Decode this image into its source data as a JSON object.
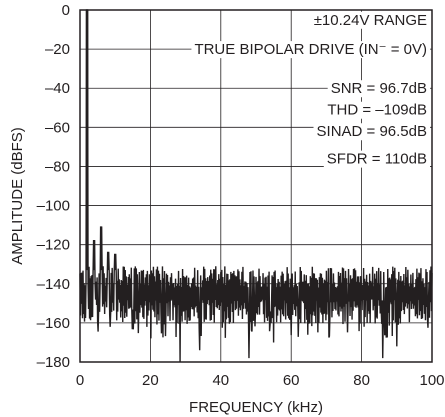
{
  "chart_data": {
    "type": "line",
    "title": "",
    "xlabel": "FREQUENCY (kHz)",
    "ylabel": "AMPLITUDE (dBFS)",
    "xlim": [
      0,
      100
    ],
    "ylim": [
      -180,
      0
    ],
    "xticks": [
      {
        "value": 0,
        "label": "0"
      },
      {
        "value": 20,
        "label": "20"
      },
      {
        "value": 40,
        "label": "40"
      },
      {
        "value": 60,
        "label": "60"
      },
      {
        "value": 80,
        "label": "80"
      },
      {
        "value": 100,
        "label": "100"
      }
    ],
    "yticks": [
      {
        "value": 0,
        "label": "0"
      },
      {
        "value": -20,
        "label": "–20"
      },
      {
        "value": -40,
        "label": "–40"
      },
      {
        "value": -60,
        "label": "–60"
      },
      {
        "value": -80,
        "label": "–80"
      },
      {
        "value": -100,
        "label": "–100"
      },
      {
        "value": -120,
        "label": "–120"
      },
      {
        "value": -140,
        "label": "–140"
      },
      {
        "value": -160,
        "label": "–160"
      },
      {
        "value": -180,
        "label": "–180"
      }
    ],
    "grid": true,
    "annotations": [
      {
        "text": "±10.24V RANGE",
        "y": -5
      },
      {
        "text": "TRUE BIPOLAR DRIVE (IN⁻ = 0V)",
        "y": -20
      },
      {
        "text": "SNR = 96.7dB",
        "y": -40
      },
      {
        "text": "THD = –109dB",
        "y": -51
      },
      {
        "text": "SINAD = 96.5dB",
        "y": -62
      },
      {
        "text": "SFDR = 110dB",
        "y": -76
      }
    ],
    "series": [
      {
        "fundamental": {
          "x": 2,
          "y": 0
        },
        "harmonics": [
          {
            "x": 4,
            "y": -118
          },
          {
            "x": 6,
            "y": -111
          },
          {
            "x": 8,
            "y": -124
          },
          {
            "x": 10,
            "y": -125
          }
        ],
        "noise_floor_upper": -133,
        "noise_floor_lower": -160,
        "noise_center": -145,
        "notable_dips": [
          {
            "x": 28.5,
            "y": -180
          },
          {
            "x": 34,
            "y": -174
          },
          {
            "x": 48,
            "y": -178
          },
          {
            "x": 55,
            "y": -170
          },
          {
            "x": 86,
            "y": -178
          },
          {
            "x": 90,
            "y": -172
          }
        ]
      }
    ],
    "colors": {
      "trace": "#231f20",
      "grid": "#231f20",
      "text": "#231f20",
      "background": "#ffffff"
    }
  }
}
